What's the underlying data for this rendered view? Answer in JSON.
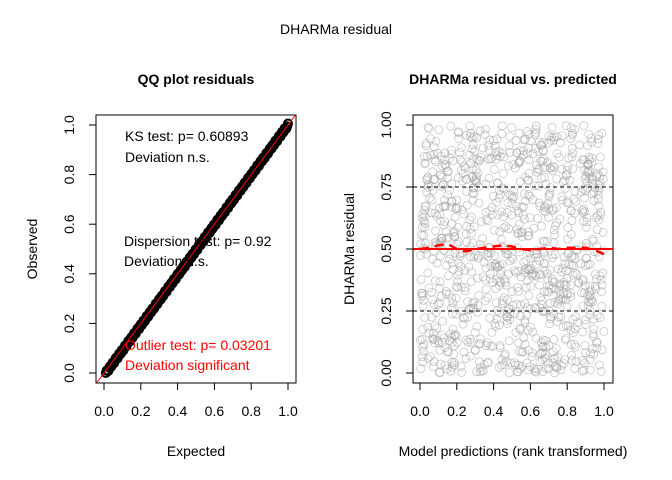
{
  "figure": {
    "main_title": "DHARMa residual"
  },
  "colors": {
    "text": "#000000",
    "red": "#ff0000",
    "points": "#9a9a9a",
    "qq_points": "#000000"
  },
  "chart_data": [
    {
      "type": "scatter",
      "subtype": "qq",
      "title": "QQ plot residuals",
      "xlabel": "Expected",
      "ylabel": "Observed",
      "xlim": [
        0,
        1
      ],
      "ylim": [
        0,
        1
      ],
      "x_ticks": [
        "0.0",
        "0.2",
        "0.4",
        "0.6",
        "0.8",
        "1.0"
      ],
      "y_ticks": [
        "0.0",
        "0.2",
        "0.4",
        "0.6",
        "0.8",
        "1.0"
      ],
      "reference_line": {
        "intercept": 0,
        "slope": 1
      },
      "qq_points": {
        "x_from": 0.01,
        "x_to": 1.0,
        "y_from": 0.0,
        "y_to": 1.0
      },
      "annotations": [
        {
          "lines": [
            "KS test: p= 0.60893",
            "Deviation  n.s."
          ],
          "color": "#000000"
        },
        {
          "lines": [
            "Dispersion test: p= 0.92",
            "Deviation  n.s."
          ],
          "color": "#000000"
        },
        {
          "lines": [
            "Outlier test: p= 0.03201",
            "Deviation  significant"
          ],
          "color": "#ff0000"
        }
      ]
    },
    {
      "type": "scatter",
      "title": "DHARMa residual vs. predicted",
      "xlabel": "Model predictions (rank transformed)",
      "ylabel": "DHARMa residual",
      "xlim": [
        0,
        1
      ],
      "ylim": [
        0,
        1
      ],
      "x_ticks": [
        "0.0",
        "0.2",
        "0.4",
        "0.6",
        "0.8",
        "1.0"
      ],
      "y_ticks": [
        "0.00",
        "0.25",
        "0.50",
        "0.75",
        "1.00"
      ],
      "dashed_lines_y": [
        0.25,
        0.75
      ],
      "solid_line_y": 0.5,
      "point_count": 1000,
      "point_distribution": "uniform",
      "quantile_smooth": {
        "x": [
          0.0,
          0.05,
          0.1,
          0.15,
          0.2,
          0.25,
          0.3,
          0.35,
          0.4,
          0.45,
          0.5,
          0.55,
          0.6,
          0.65,
          0.7,
          0.75,
          0.8,
          0.85,
          0.9,
          0.95,
          1.0
        ],
        "y": [
          0.5,
          0.505,
          0.515,
          0.52,
          0.5,
          0.49,
          0.5,
          0.505,
          0.51,
          0.515,
          0.51,
          0.5,
          0.495,
          0.5,
          0.505,
          0.5,
          0.505,
          0.505,
          0.505,
          0.495,
          0.48
        ]
      }
    }
  ]
}
